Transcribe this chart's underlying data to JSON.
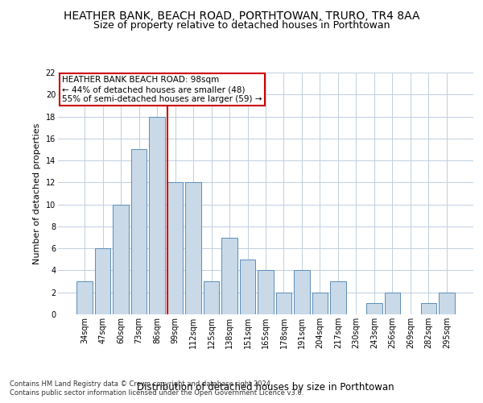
{
  "title1": "HEATHER BANK, BEACH ROAD, PORTHTOWAN, TRURO, TR4 8AA",
  "title2": "Size of property relative to detached houses in Porthtowan",
  "xlabel": "Distribution of detached houses by size in Porthtowan",
  "ylabel": "Number of detached properties",
  "footer1": "Contains HM Land Registry data © Crown copyright and database right 2024.",
  "footer2": "Contains public sector information licensed under the Open Government Licence v3.0.",
  "annotation_line1": "HEATHER BANK BEACH ROAD: 98sqm",
  "annotation_line2": "← 44% of detached houses are smaller (48)",
  "annotation_line3": "55% of semi-detached houses are larger (59) →",
  "bar_labels": [
    "34sqm",
    "47sqm",
    "60sqm",
    "73sqm",
    "86sqm",
    "99sqm",
    "112sqm",
    "125sqm",
    "138sqm",
    "151sqm",
    "165sqm",
    "178sqm",
    "191sqm",
    "204sqm",
    "217sqm",
    "230sqm",
    "243sqm",
    "256sqm",
    "269sqm",
    "282sqm",
    "295sqm"
  ],
  "bar_values": [
    3,
    6,
    10,
    15,
    18,
    12,
    12,
    3,
    7,
    5,
    4,
    2,
    4,
    2,
    3,
    0,
    1,
    2,
    0,
    1,
    2
  ],
  "bar_color": "#c9d9e8",
  "bar_edge_color": "#5b8db8",
  "vline_color": "#cc0000",
  "annotation_box_color": "#cc0000",
  "ylim": [
    0,
    22
  ],
  "yticks": [
    0,
    2,
    4,
    6,
    8,
    10,
    12,
    14,
    16,
    18,
    20,
    22
  ],
  "bg_color": "#ffffff",
  "grid_color": "#c0cfe0",
  "title1_fontsize": 10,
  "title2_fontsize": 9,
  "xlabel_fontsize": 8.5,
  "ylabel_fontsize": 8,
  "tick_fontsize": 7,
  "footer_fontsize": 6,
  "annotation_fontsize": 7.5
}
